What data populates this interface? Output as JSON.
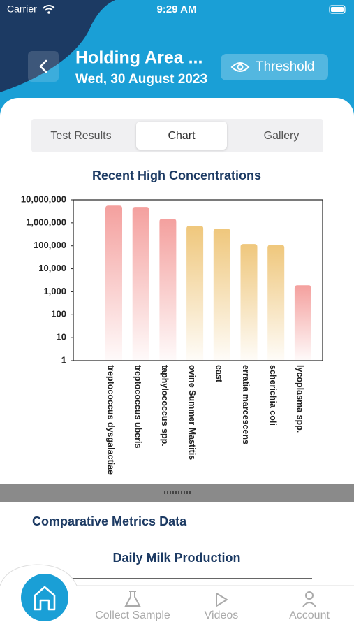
{
  "status_bar": {
    "carrier": "Carrier",
    "time": "9:29 AM"
  },
  "header": {
    "title": "Holding Area ...",
    "date": "Wed, 30 August 2023",
    "button": "Threshold"
  },
  "tabs": [
    "Test Results",
    "Chart",
    "Gallery"
  ],
  "chart_data": {
    "type": "bar",
    "title": "Recent High Concentrations",
    "categories": [
      "treptococcus dysgalactiae",
      "treptococcus uberis",
      "taphylococcus spp.",
      "ovine Summer Mastitis",
      "east",
      "erratia marcescens",
      "scherichia coli",
      "lycoplasma spp."
    ],
    "values": [
      5600000,
      4900000,
      1500000,
      740000,
      550000,
      120000,
      110000,
      1900
    ],
    "colors": [
      "#f4a09e",
      "#f4a09e",
      "#f4a09e",
      "#efc77c",
      "#efc77c",
      "#efc77c",
      "#efc77c",
      "#f4a09e"
    ],
    "yscale": "log",
    "ylim": [
      1,
      10000000
    ],
    "yticks": [
      1,
      10,
      100,
      {
        "value": 1000,
        "label": "1,000"
      },
      {
        "value": 10000,
        "label": "10,000"
      },
      {
        "value": 100000,
        "label": "100,000"
      },
      {
        "value": 1000000,
        "label": "1,000,000"
      },
      {
        "value": 10000000,
        "label": "10,000,000"
      }
    ]
  },
  "section": {
    "title": "Comparative Metrics Data",
    "subtitle": "Daily Milk Production"
  },
  "nav": [
    "Collect Sample",
    "Videos",
    "Account"
  ]
}
